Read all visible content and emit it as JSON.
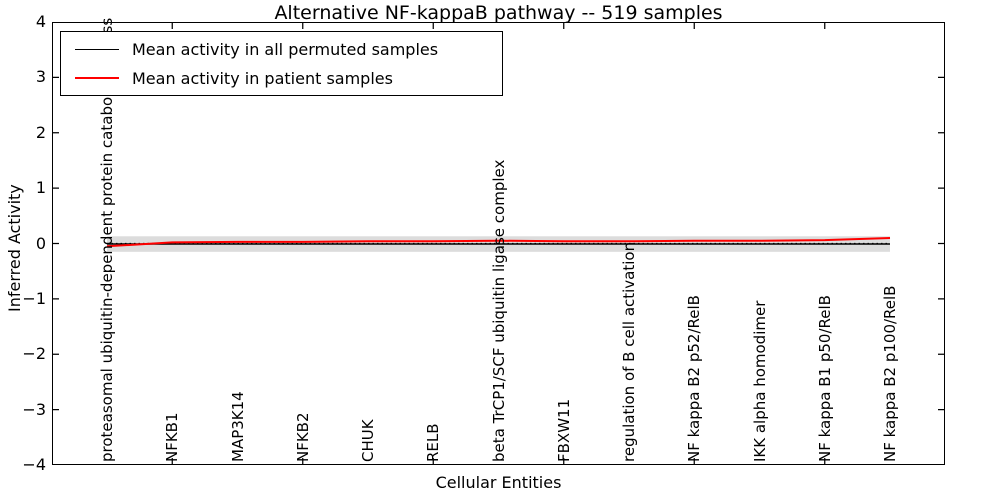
{
  "chart_data": {
    "type": "line",
    "title": "Alternative NF-kappaB pathway -- 519 samples",
    "xlabel": "Cellular Entities",
    "ylabel": "Inferred Activity",
    "ylim": [
      -4,
      4
    ],
    "yticks": [
      4,
      3,
      2,
      1,
      0,
      -1,
      -2,
      -3,
      -4
    ],
    "grid": false,
    "legend_position": "upper left",
    "categories": [
      "proteasomal ubiquitin-dependent protein catabolic process",
      "NFKB1",
      "MAP3K14",
      "NFKB2",
      "CHUK",
      "RELB",
      "beta TrCP1/SCF ubiquitin ligase complex",
      "FBXW11",
      "regulation of B cell activation",
      "NF kappa B2 p52/RelB",
      "IKK alpha homodimer",
      "NF kappa B1 p50/RelB",
      "NF kappa B2 p100/RelB"
    ],
    "series": [
      {
        "name": "Mean activity in all permuted samples",
        "color": "#000000",
        "values": [
          -0.01,
          -0.01,
          -0.01,
          -0.01,
          -0.01,
          -0.01,
          -0.01,
          -0.01,
          -0.01,
          -0.01,
          -0.01,
          -0.01,
          -0.01
        ]
      },
      {
        "name": "Mean activity in patient samples",
        "color": "#ff0000",
        "values": [
          -0.05,
          0.02,
          0.03,
          0.03,
          0.04,
          0.04,
          0.05,
          0.04,
          0.04,
          0.05,
          0.05,
          0.06,
          0.1
        ]
      }
    ],
    "band": {
      "name": "permuted-samples-spread-band",
      "color": "#dcdcdc",
      "upper": 0.13,
      "lower": -0.15
    },
    "zero_line": {
      "value": 0,
      "style": "dotted",
      "color": "#000000"
    }
  }
}
